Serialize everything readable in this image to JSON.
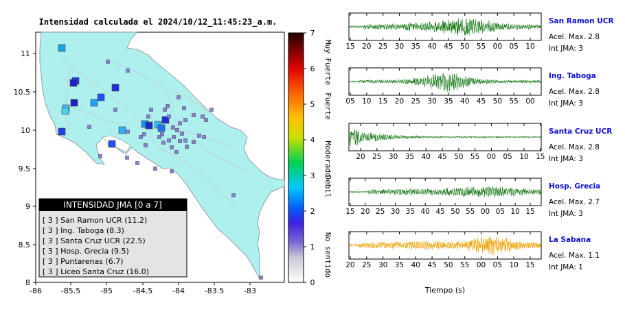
{
  "map": {
    "title": "Intensidad calculada el 2024/10/12_11:45:23_a.m.",
    "xticks": [
      "-86",
      "-85.5",
      "-85",
      "-84.5",
      "-84",
      "-83.5",
      "-83"
    ],
    "yticks": [
      "8",
      "8.5",
      "9",
      "9.5",
      "10",
      "10.5",
      "11"
    ],
    "legend": {
      "header": "INTENSIDAD JMA [0 a 7]",
      "items": [
        "[ 3 ]  San Ramon UCR (11.2)",
        "[ 3 ]  Ing. Taboga (8.3)",
        "[ 3 ]  Santa Cruz UCR (22.5)",
        "[ 3 ]  Hosp. Grecia (9.5)",
        "[ 3 ]  Puntarenas (6.7)",
        "[ 3 ]  Liceo Santa Cruz (16.0)"
      ]
    }
  },
  "colorbar": {
    "ticks": [
      "0",
      "1",
      "2",
      "3",
      "4",
      "5",
      "6",
      "7"
    ],
    "labels": [
      "No sentido",
      "Debil",
      "Moderado",
      "Fuerte",
      "Muy Fuerte"
    ]
  },
  "waveforms": {
    "xlabel": "Tiempo (s)",
    "panels": [
      {
        "station": "San Ramon UCR",
        "acel": "Acel. Max. 2.8",
        "jma": "Int JMA: 3",
        "ticks": [
          "15",
          "20",
          "25",
          "30",
          "35",
          "40",
          "45",
          "50",
          "55",
          "00",
          "05",
          "10"
        ],
        "color": "#1a7a1a",
        "station_color": "#1010d0"
      },
      {
        "station": "Ing. Taboga",
        "acel": "Acel. Max. 2.8",
        "jma": "Int JMA: 3",
        "ticks": [
          "05",
          "10",
          "15",
          "20",
          "25",
          "30",
          "35",
          "40",
          "45",
          "50",
          "55",
          "00"
        ],
        "color": "#1a7a1a",
        "station_color": "#1010d0"
      },
      {
        "station": "Santa Cruz UCR",
        "acel": "Acel. Max. 2.8",
        "jma": "Int JMA: 3",
        "ticks": [
          "20",
          "25",
          "30",
          "35",
          "40",
          "45",
          "50",
          "55",
          "00",
          "05",
          "10",
          "15"
        ],
        "color": "#1a7a1a",
        "station_color": "#1010d0"
      },
      {
        "station": "Hosp. Grecia",
        "acel": "Acel. Max. 2.7",
        "jma": "Int JMA: 3",
        "ticks": [
          "15",
          "20",
          "25",
          "30",
          "35",
          "40",
          "45",
          "50",
          "55",
          "00",
          "05",
          "10",
          "15"
        ],
        "color": "#1a7a1a",
        "station_color": "#1010d0"
      },
      {
        "station": "La Sabana",
        "acel": "Acel. Max. 1.1",
        "jma": "Int JMA: 1",
        "ticks": [
          "20",
          "25",
          "30",
          "35",
          "40",
          "45",
          "50",
          "55",
          "00",
          "05",
          "10",
          "15"
        ],
        "color": "#f0a000",
        "station_color": "#1010d0"
      }
    ]
  }
}
